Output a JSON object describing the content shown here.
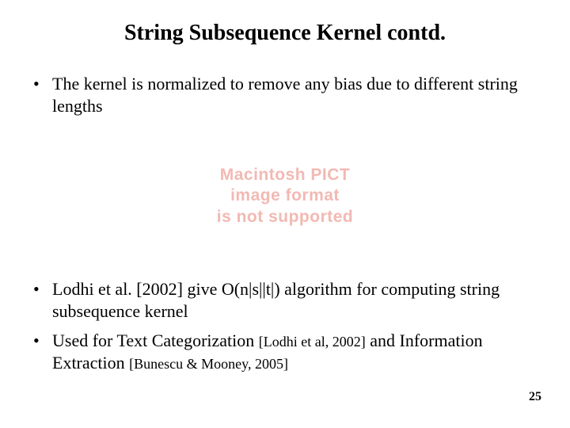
{
  "title": "String Subsequence Kernel contd.",
  "bullets": {
    "b1": "The kernel is normalized to remove any bias due to different string lengths",
    "b2a": "Lodhi et al. [2002] give O(n|s||t|) algorithm for computing string subsequence kernel",
    "b3_pre": "Used for Text Categorization ",
    "b3_ref1": "[Lodhi et al, 2002]",
    "b3_mid": " and Information Extraction ",
    "b3_ref2": "[Bunescu & Mooney, 2005]"
  },
  "pict": {
    "l1": "Macintosh PICT",
    "l2": "image format",
    "l3": "is not supported"
  },
  "page_number": "25",
  "colors": {
    "text": "#000000",
    "pict_text": "#f2b9b3",
    "background": "#ffffff"
  },
  "fonts": {
    "body_family": "Times New Roman",
    "title_size_pt": 21,
    "body_size_pt": 17,
    "smallref_size_pt": 14,
    "pagenum_size_pt": 12
  }
}
